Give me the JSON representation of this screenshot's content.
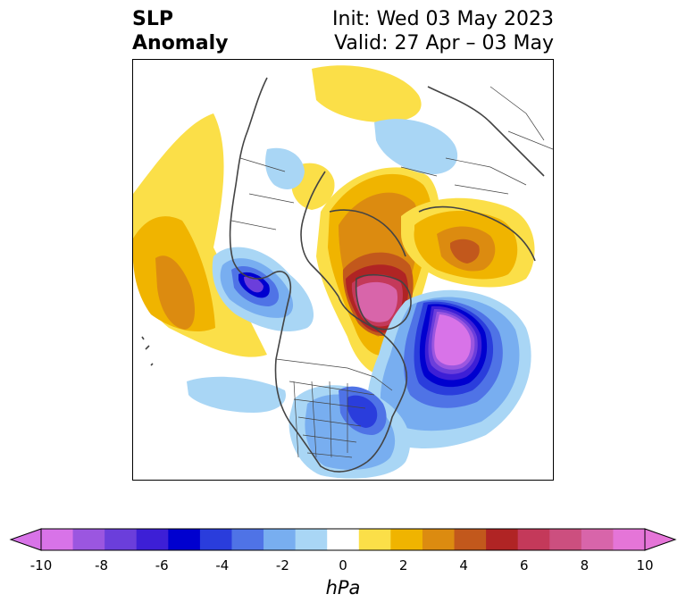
{
  "header": {
    "title_line1": "SLP",
    "title_line2": "Anomaly",
    "init_text": "Init: Wed 03 May 2023",
    "valid_text": "Valid: 27 Apr – 03 May"
  },
  "map": {
    "projection": "north-polar-stereographic",
    "variable": "sea level pressure anomaly",
    "features": [
      "coastlines",
      "country-borders",
      "us-state-borders",
      "canada-province-borders"
    ]
  },
  "colorbar": {
    "unit_label": "hPa",
    "extend": "both",
    "ticks": [
      "-10",
      "-8",
      "-6",
      "-4",
      "-2",
      "0",
      "2",
      "4",
      "6",
      "8",
      "10"
    ],
    "levels": [
      -10,
      -9,
      -8,
      -7,
      -6,
      -5,
      -4,
      -3,
      -2,
      -1,
      1,
      2,
      3,
      4,
      5,
      6,
      7,
      8,
      9,
      10
    ],
    "colors": [
      "#d873e8",
      "#9b56e0",
      "#6b3edb",
      "#3d1fd6",
      "#0000cf",
      "#2a3ddc",
      "#4f73e6",
      "#78aef0",
      "#a9d6f5",
      "#ffffff",
      "#fbdf48",
      "#f0b400",
      "#dc8b10",
      "#c2581c",
      "#b02424",
      "#c4395a",
      "#cc4f7f",
      "#d865aa",
      "#e575d8"
    ],
    "under_color": "#d873e8",
    "over_color": "#e575d8"
  }
}
